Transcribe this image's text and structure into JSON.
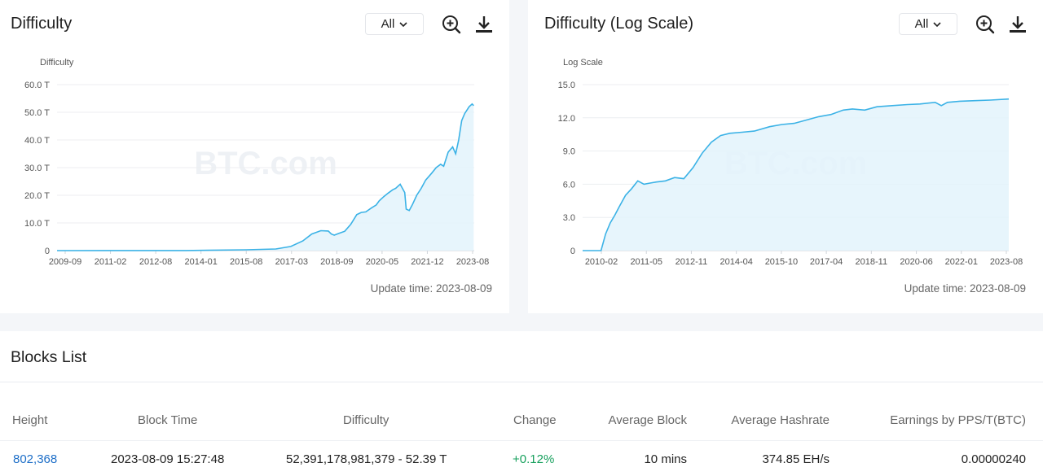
{
  "left_panel": {
    "title": "Difficulty",
    "filter": "All",
    "update_time": "Update time: 2023-08-09",
    "watermark": "BTC.com"
  },
  "right_panel": {
    "title": "Difficulty (Log Scale)",
    "filter": "All",
    "update_time": "Update time: 2023-08-09",
    "watermark": "BTC.com"
  },
  "chart_data": [
    {
      "type": "area",
      "ylabel": "Difficulty",
      "y_ticks": [
        "0",
        "10.0 T",
        "20.0 T",
        "30.0 T",
        "40.0 T",
        "50.0 T",
        "60.0 T"
      ],
      "x_ticks": [
        "2009-09",
        "2011-02",
        "2012-08",
        "2014-01",
        "2015-08",
        "2017-03",
        "2018-09",
        "2020-05",
        "2021-12",
        "2023-08"
      ],
      "ylim": [
        0,
        60
      ],
      "unit": "T",
      "grid": true,
      "color": "#3bb2e6",
      "x": [
        2009.7,
        2014.0,
        2016.0,
        2017.0,
        2017.5,
        2017.9,
        2018.2,
        2018.5,
        2018.75,
        2018.85,
        2018.95,
        2019.1,
        2019.3,
        2019.5,
        2019.7,
        2019.85,
        2020.0,
        2020.2,
        2020.35,
        2020.45,
        2020.6,
        2020.75,
        2020.9,
        2021.0,
        2021.15,
        2021.3,
        2021.35,
        2021.45,
        2021.55,
        2021.7,
        2021.85,
        2022.0,
        2022.2,
        2022.35,
        2022.5,
        2022.6,
        2022.75,
        2022.9,
        2023.0,
        2023.1,
        2023.2,
        2023.3,
        2023.45,
        2023.55,
        2023.6
      ],
      "y": [
        0,
        0.02,
        0.3,
        0.6,
        1.5,
        3.5,
        6.0,
        7.2,
        7.1,
        6.0,
        5.6,
        6.2,
        7.0,
        9.5,
        13.0,
        13.8,
        14.0,
        15.5,
        16.5,
        18.0,
        19.5,
        20.8,
        22.0,
        22.5,
        24.0,
        21.0,
        15.0,
        14.5,
        16.5,
        20.0,
        22.5,
        25.5,
        28.0,
        30.0,
        31.2,
        30.5,
        35.6,
        37.5,
        35.0,
        40.0,
        47.0,
        49.5,
        52.0,
        53.0,
        52.4
      ]
    },
    {
      "type": "area",
      "ylabel": "Log Scale",
      "y_ticks": [
        "0",
        "3.0",
        "6.0",
        "9.0",
        "12.0",
        "15.0"
      ],
      "x_ticks": [
        "2010-02",
        "2011-05",
        "2012-11",
        "2014-04",
        "2015-10",
        "2017-04",
        "2018-11",
        "2020-06",
        "2022-01",
        "2023-08"
      ],
      "ylim": [
        0,
        15
      ],
      "grid": true,
      "color": "#3bb2e6",
      "x": [
        2009.7,
        2010.3,
        2010.45,
        2010.6,
        2010.75,
        2010.9,
        2011.1,
        2011.3,
        2011.5,
        2011.7,
        2011.9,
        2012.1,
        2012.4,
        2012.7,
        2013.0,
        2013.3,
        2013.6,
        2013.9,
        2014.2,
        2014.5,
        2014.9,
        2015.3,
        2015.8,
        2016.2,
        2016.6,
        2017.0,
        2017.4,
        2017.8,
        2018.2,
        2018.5,
        2018.9,
        2019.3,
        2019.8,
        2020.3,
        2020.7,
        2021.2,
        2021.4,
        2021.6,
        2022.0,
        2022.5,
        2023.0,
        2023.6
      ],
      "y": [
        0,
        0,
        1.5,
        2.5,
        3.2,
        4.0,
        5.0,
        5.6,
        6.3,
        6.0,
        6.1,
        6.2,
        6.3,
        6.6,
        6.5,
        7.5,
        8.8,
        9.8,
        10.4,
        10.6,
        10.7,
        10.8,
        11.2,
        11.4,
        11.5,
        11.8,
        12.1,
        12.3,
        12.7,
        12.8,
        12.7,
        13.0,
        13.1,
        13.2,
        13.25,
        13.4,
        13.1,
        13.4,
        13.5,
        13.55,
        13.6,
        13.7
      ]
    }
  ],
  "blocks": {
    "title": "Blocks List",
    "headers": [
      "Height",
      "Block Time",
      "Difficulty",
      "Change",
      "Average Block",
      "Average Hashrate",
      "Earnings by PPS/T(BTC)"
    ],
    "rows": [
      [
        "802,368",
        "2023-08-09 15:27:48",
        "52,391,178,981,379 - 52.39 T",
        "+0.12%",
        "10 mins",
        "374.85 EH/s",
        "0.00000240"
      ]
    ]
  },
  "icons": [
    "chevron-down-icon",
    "zoom-in-icon",
    "download-icon"
  ],
  "colors": {
    "accent": "#3bb2e6",
    "link": "#1e6fc8",
    "positive": "#17a05d"
  }
}
